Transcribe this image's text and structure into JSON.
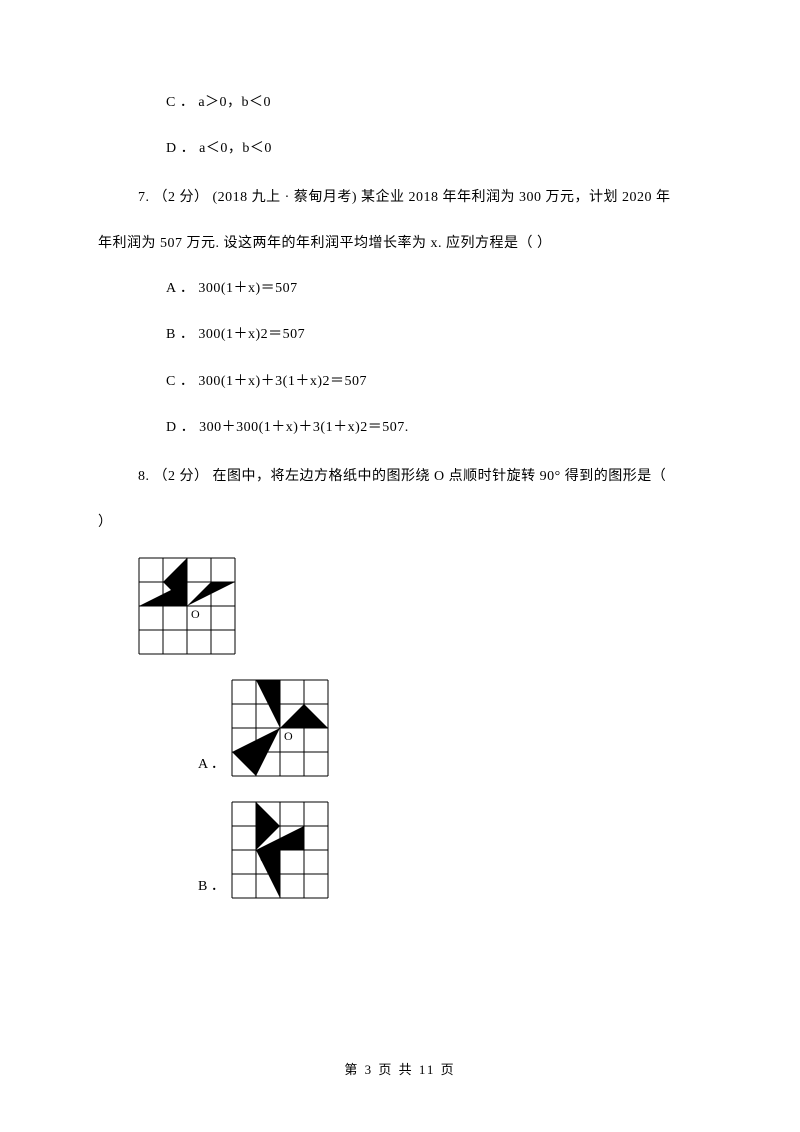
{
  "opts_prev": {
    "c": "C ． a＞0，b＜0",
    "d": "D ． a＜0，b＜0"
  },
  "q7": {
    "stem_line1": "7.   （2 分）  (2018 九上 · 蔡甸月考)   某企业 2018 年年利润为 300 万元，计划 2020 年",
    "stem_line2": "年利润为 507 万元. 设这两年的年利润平均增长率为 x. 应列方程是（       ）",
    "a": "A ． 300(1＋x)＝507",
    "b": "B ． 300(1＋x)2＝507",
    "c": "C ． 300(1＋x)＋3(1＋x)2＝507",
    "d": "D ． 300＋300(1＋x)＋3(1＋x)2＝507."
  },
  "q8": {
    "stem_line1": "8.   （2 分）    在图中，将左边方格纸中的图形绕 O 点顺时针旋转 90° 得到的图形是（",
    "stem_line2": "）",
    "labelA": "A ．",
    "labelB": "B ．",
    "grid": {
      "cell": 24,
      "cols": 4,
      "rows": 4,
      "stroke": "#000000",
      "bg": "#ffffff",
      "fill": "#000000",
      "O_label": "O",
      "O_font": 12,
      "main": {
        "polys": [
          [
            [
              0,
              2
            ],
            [
              2,
              2
            ],
            [
              2,
              1
            ],
            [
              0,
              2
            ]
          ],
          [
            [
              2,
              2
            ],
            [
              4,
              1
            ],
            [
              3,
              1
            ],
            [
              2,
              2
            ]
          ],
          [
            [
              2,
              2
            ],
            [
              2,
              0
            ],
            [
              1,
              1
            ],
            [
              2,
              2
            ]
          ]
        ],
        "O_at": [
          2,
          2
        ]
      },
      "A": {
        "polys": [
          [
            [
              2,
              2
            ],
            [
              2,
              0
            ],
            [
              1,
              0
            ],
            [
              2,
              2
            ]
          ],
          [
            [
              2,
              2
            ],
            [
              4,
              2
            ],
            [
              3,
              1
            ],
            [
              2,
              2
            ]
          ],
          [
            [
              2,
              2
            ],
            [
              0,
              3
            ],
            [
              1,
              4
            ],
            [
              2,
              2
            ]
          ]
        ],
        "O_at": [
          2,
          2
        ]
      },
      "B": {
        "polys": [
          [
            [
              1,
              2
            ],
            [
              1,
              0
            ],
            [
              2,
              1
            ],
            [
              1,
              2
            ]
          ],
          [
            [
              1,
              2
            ],
            [
              3,
              2
            ],
            [
              3,
              1
            ],
            [
              1,
              2
            ]
          ],
          [
            [
              1,
              2
            ],
            [
              2,
              4
            ],
            [
              2,
              2
            ],
            [
              1,
              2
            ]
          ]
        ],
        "O_at": [
          1,
          2
        ]
      }
    }
  },
  "footer": "第  3  页  共  11  页"
}
